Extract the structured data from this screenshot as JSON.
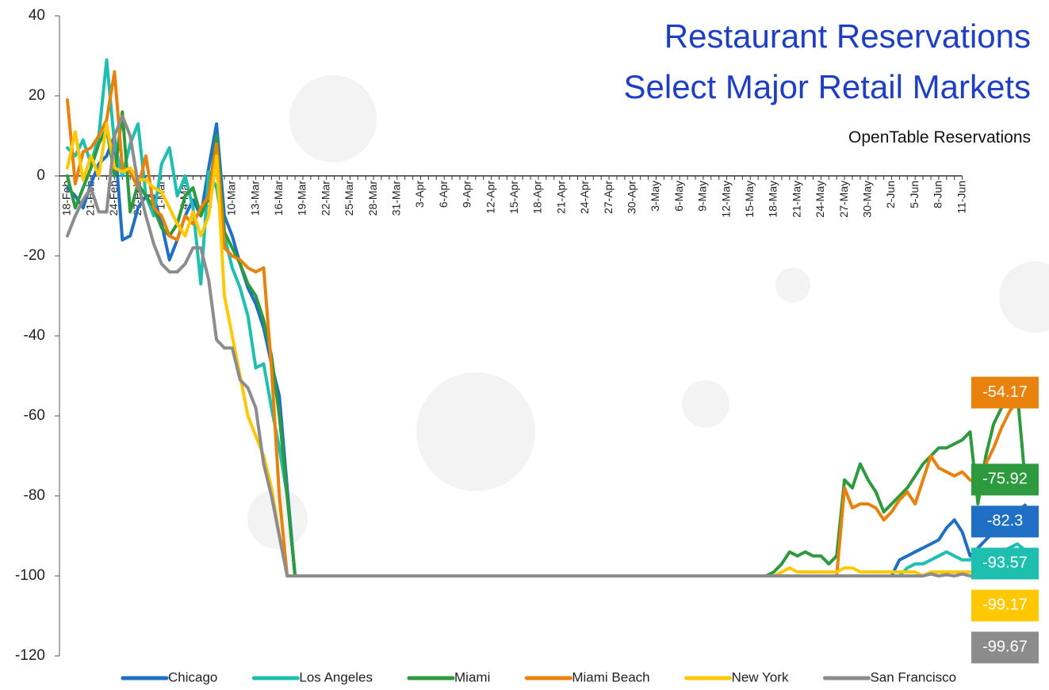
{
  "chart_data": {
    "type": "line",
    "title": [
      "Restaurant Reservations",
      "Select Major Retail Markets"
    ],
    "subtitle": "OpenTable Reservations",
    "categories": [
      "18-Feb",
      null,
      null,
      "21-Feb",
      null,
      null,
      "24-Feb",
      null,
      null,
      "27-Feb",
      null,
      null,
      "1-Mar",
      null,
      null,
      "4-Mar",
      null,
      null,
      "7-Mar",
      null,
      null,
      "10-Mar",
      null,
      null,
      "13-Mar",
      null,
      null,
      "16-Mar",
      null,
      null,
      "19-Mar",
      null,
      null,
      "22-Mar",
      null,
      null,
      "25-Mar",
      null,
      null,
      "28-Mar",
      null,
      null,
      "31-Mar",
      null,
      null,
      "3-Apr",
      null,
      null,
      "6-Apr",
      null,
      null,
      "9-Apr",
      null,
      null,
      "12-Apr",
      null,
      null,
      "15-Apr",
      null,
      null,
      "18-Apr",
      null,
      null,
      "21-Apr",
      null,
      null,
      "24-Apr",
      null,
      null,
      "27-Apr",
      null,
      null,
      "30-Apr",
      null,
      null,
      "3-May",
      null,
      null,
      "6-May",
      null,
      null,
      "9-May",
      null,
      null,
      "12-May",
      null,
      null,
      "15-May",
      null,
      null,
      "18-May",
      null,
      null,
      "21-May",
      null,
      null,
      "24-May",
      null,
      null,
      "27-May",
      null,
      null,
      "30-May",
      null,
      null,
      "2-Jun",
      null,
      null,
      "5-Jun",
      null,
      null,
      "8-Jun",
      null,
      null,
      "11-Jun",
      null,
      null,
      null,
      null,
      null,
      null,
      null,
      null
    ],
    "ylim": [
      -120,
      40
    ],
    "yticks": [
      -120,
      -100,
      -80,
      -60,
      -40,
      -20,
      0,
      20,
      40
    ],
    "legend": "bottom",
    "end_labels": true,
    "series": [
      {
        "name": "Chicago",
        "color": "#1f6fc5",
        "values": [
          -3,
          -5,
          -8,
          -2,
          3,
          5,
          10,
          -16,
          -15,
          -8,
          -5,
          -5,
          -12,
          -21,
          -16,
          -10,
          -6,
          -10,
          2,
          13,
          -10,
          -15,
          -22,
          -28,
          -32,
          -38,
          -47,
          -55,
          -78,
          -100,
          -100,
          -100,
          -100,
          -100,
          -100,
          -100,
          -100,
          -100,
          -100,
          -100,
          -100,
          -100,
          -100,
          -100,
          -100,
          -100,
          -100,
          -100,
          -100,
          -100,
          -100,
          -100,
          -100,
          -100,
          -100,
          -100,
          -100,
          -100,
          -100,
          -100,
          -100,
          -100,
          -100,
          -100,
          -100,
          -100,
          -100,
          -100,
          -100,
          -100,
          -100,
          -100,
          -100,
          -100,
          -100,
          -100,
          -100,
          -100,
          -100,
          -100,
          -100,
          -100,
          -100,
          -100,
          -100,
          -100,
          -100,
          -100,
          -100,
          -100,
          -100,
          -100,
          -100,
          -100,
          -100,
          -100,
          -100,
          -100,
          -100,
          -100,
          -100,
          -100,
          -100,
          -100,
          -100,
          -100,
          -96,
          -95,
          -94,
          -93,
          -92,
          -91,
          -88,
          -86,
          -89,
          -95,
          -93,
          -91,
          -89,
          -87,
          -85,
          -84,
          -82.3
        ]
      },
      {
        "name": "Los Angeles",
        "color": "#1fbfb0",
        "values": [
          7,
          5,
          9,
          3,
          10,
          29,
          8,
          0,
          8,
          13,
          -5,
          -10,
          3,
          7,
          -5,
          0,
          -8,
          -27,
          1,
          -3,
          -15,
          -23,
          -28,
          -35,
          -48,
          -47,
          -58,
          -68,
          -80,
          -100,
          -100,
          -100,
          -100,
          -100,
          -100,
          -100,
          -100,
          -100,
          -100,
          -100,
          -100,
          -100,
          -100,
          -100,
          -100,
          -100,
          -100,
          -100,
          -100,
          -100,
          -100,
          -100,
          -100,
          -100,
          -100,
          -100,
          -100,
          -100,
          -100,
          -100,
          -100,
          -100,
          -100,
          -100,
          -100,
          -100,
          -100,
          -100,
          -100,
          -100,
          -100,
          -100,
          -100,
          -100,
          -100,
          -100,
          -100,
          -100,
          -100,
          -100,
          -100,
          -100,
          -100,
          -100,
          -100,
          -100,
          -100,
          -100,
          -100,
          -100,
          -100,
          -100,
          -100,
          -100,
          -100,
          -100,
          -100,
          -100,
          -100,
          -100,
          -100,
          -100,
          -100,
          -100,
          -100,
          -100,
          -100,
          -98,
          -97,
          -97,
          -96,
          -95,
          -94,
          -95,
          -96,
          -96,
          -95,
          -96,
          -95,
          -94,
          -93,
          -92,
          -93.57
        ]
      },
      {
        "name": "Miami",
        "color": "#2e9a3e",
        "values": [
          0,
          -8,
          -3,
          2,
          8,
          12,
          0,
          16,
          -9,
          -2,
          -5,
          -8,
          -13,
          -15,
          -12,
          -5,
          -3,
          -10,
          -5,
          10,
          -14,
          -18,
          -22,
          -27,
          -30,
          -36,
          -45,
          -60,
          -80,
          -100,
          -100,
          -100,
          -100,
          -100,
          -100,
          -100,
          -100,
          -100,
          -100,
          -100,
          -100,
          -100,
          -100,
          -100,
          -100,
          -100,
          -100,
          -100,
          -100,
          -100,
          -100,
          -100,
          -100,
          -100,
          -100,
          -100,
          -100,
          -100,
          -100,
          -100,
          -100,
          -100,
          -100,
          -100,
          -100,
          -100,
          -100,
          -100,
          -100,
          -100,
          -100,
          -100,
          -100,
          -100,
          -100,
          -100,
          -100,
          -100,
          -100,
          -100,
          -100,
          -100,
          -100,
          -100,
          -100,
          -100,
          -100,
          -100,
          -100,
          -100,
          -99,
          -97,
          -94,
          -95,
          -94,
          -95,
          -95,
          -97,
          -95,
          -76,
          -78,
          -72,
          -76,
          -79,
          -84,
          -82,
          -80,
          -78,
          -75,
          -72,
          -70,
          -68,
          -68,
          -67,
          -66,
          -64,
          -82,
          -70,
          -62,
          -58,
          -53,
          -54,
          -75.92
        ]
      },
      {
        "name": "Miami Beach",
        "color": "#e8820c",
        "values": [
          19,
          -2,
          6,
          7,
          10,
          14,
          26,
          2,
          1,
          -3,
          5,
          -8,
          -10,
          -15,
          -16,
          -10,
          -12,
          -8,
          -5,
          8,
          -18,
          -20,
          -21,
          -23,
          -24,
          -23,
          -48,
          -80,
          -100,
          -100,
          -100,
          -100,
          -100,
          -100,
          -100,
          -100,
          -100,
          -100,
          -100,
          -100,
          -100,
          -100,
          -100,
          -100,
          -100,
          -100,
          -100,
          -100,
          -100,
          -100,
          -100,
          -100,
          -100,
          -100,
          -100,
          -100,
          -100,
          -100,
          -100,
          -100,
          -100,
          -100,
          -100,
          -100,
          -100,
          -100,
          -100,
          -100,
          -100,
          -100,
          -100,
          -100,
          -100,
          -100,
          -100,
          -100,
          -100,
          -100,
          -100,
          -100,
          -100,
          -100,
          -100,
          -100,
          -100,
          -100,
          -100,
          -100,
          -100,
          -100,
          -100,
          -100,
          -100,
          -100,
          -100,
          -100,
          -100,
          -100,
          -100,
          -78,
          -83,
          -82,
          -82,
          -83,
          -86,
          -84,
          -81,
          -79,
          -82,
          -76,
          -70,
          -73,
          -74,
          -75,
          -74,
          -76,
          -77,
          -72,
          -68,
          -63,
          -59,
          -56,
          -54.17
        ]
      },
      {
        "name": "New York",
        "color": "#ffc800",
        "values": [
          2,
          11,
          -1,
          5,
          0,
          13,
          2,
          1,
          2,
          -1,
          -1,
          -3,
          -4,
          -8,
          -12,
          -15,
          -9,
          -15,
          -10,
          5,
          -30,
          -40,
          -50,
          -60,
          -65,
          -70,
          -78,
          -90,
          -100,
          -100,
          -100,
          -100,
          -100,
          -100,
          -100,
          -100,
          -100,
          -100,
          -100,
          -100,
          -100,
          -100,
          -100,
          -100,
          -100,
          -100,
          -100,
          -100,
          -100,
          -100,
          -100,
          -100,
          -100,
          -100,
          -100,
          -100,
          -100,
          -100,
          -100,
          -100,
          -100,
          -100,
          -100,
          -100,
          -100,
          -100,
          -100,
          -100,
          -100,
          -100,
          -100,
          -100,
          -100,
          -100,
          -100,
          -100,
          -100,
          -100,
          -100,
          -100,
          -100,
          -100,
          -100,
          -100,
          -100,
          -100,
          -100,
          -100,
          -100,
          -100,
          -100,
          -99,
          -98,
          -99,
          -99,
          -99,
          -99,
          -99,
          -99,
          -98,
          -98,
          -99,
          -99,
          -99,
          -99,
          -99,
          -99,
          -99,
          -99,
          -100,
          -99,
          -99,
          -99,
          -99,
          -99,
          -99,
          -99,
          -99,
          -99,
          -99,
          -99,
          -99,
          -99.17
        ]
      },
      {
        "name": "San Francisco",
        "color": "#8c8c8c",
        "values": [
          -15,
          -10,
          -6,
          -3,
          -9,
          -9,
          10,
          15,
          10,
          -2,
          -10,
          -17,
          -22,
          -24,
          -24,
          -22,
          -18,
          -18,
          -26,
          -41,
          -43,
          -43,
          -51,
          -53,
          -58,
          -72,
          -80,
          -90,
          -100,
          -100,
          -100,
          -100,
          -100,
          -100,
          -100,
          -100,
          -100,
          -100,
          -100,
          -100,
          -100,
          -100,
          -100,
          -100,
          -100,
          -100,
          -100,
          -100,
          -100,
          -100,
          -100,
          -100,
          -100,
          -100,
          -100,
          -100,
          -100,
          -100,
          -100,
          -100,
          -100,
          -100,
          -100,
          -100,
          -100,
          -100,
          -100,
          -100,
          -100,
          -100,
          -100,
          -100,
          -100,
          -100,
          -100,
          -100,
          -100,
          -100,
          -100,
          -100,
          -100,
          -100,
          -100,
          -100,
          -100,
          -100,
          -100,
          -100,
          -100,
          -100,
          -100,
          -100,
          -100,
          -100,
          -100,
          -100,
          -100,
          -100,
          -100,
          -100,
          -100,
          -100,
          -100,
          -100,
          -100,
          -100,
          -100,
          -100,
          -100,
          -100,
          -99.5,
          -100,
          -99.7,
          -100,
          -99.5,
          -100,
          -100,
          -100,
          -100,
          -100,
          -99.8,
          -99.7,
          -99.67
        ]
      }
    ]
  }
}
